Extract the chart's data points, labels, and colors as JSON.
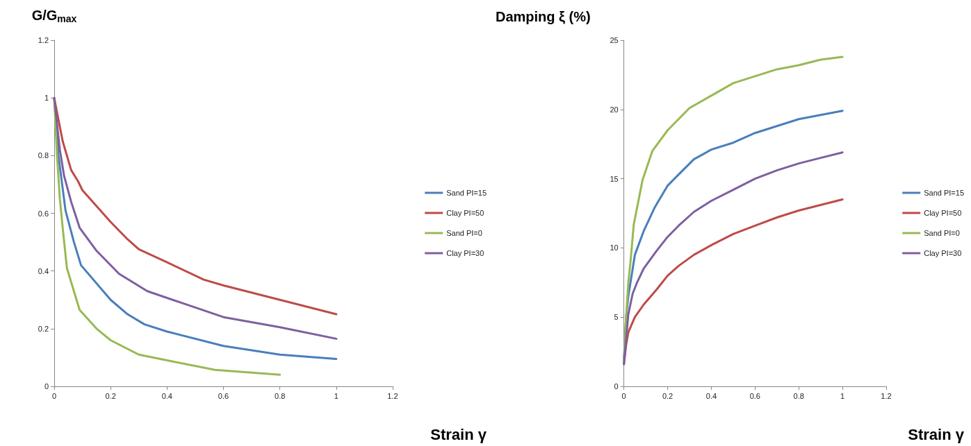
{
  "chart_data": [
    {
      "type": "line",
      "ylabel": "G/G$_{max}$",
      "xlabel": "Strain γ",
      "xlim": [
        0,
        1.2
      ],
      "xticks": [
        0,
        0.2,
        0.4,
        0.6,
        0.8,
        1,
        1.2
      ],
      "ylim": [
        0,
        1.2
      ],
      "yticks": [
        0,
        0.2,
        0.4,
        0.6,
        0.8,
        1,
        1.2
      ],
      "grid": false,
      "legend": "right",
      "marker": "none",
      "line_style": "solid",
      "series": [
        {
          "name": "Sand PI=15",
          "color": "#4a7ebb",
          "x": [
            0,
            0.015,
            0.04,
            0.07,
            0.095,
            0.2,
            0.26,
            0.32,
            0.4,
            0.6,
            0.8,
            1
          ],
          "values": [
            1,
            0.8,
            0.61,
            0.5,
            0.42,
            0.3,
            0.25,
            0.215,
            0.19,
            0.14,
            0.11,
            0.095
          ]
        },
        {
          "name": "Clay PI=50",
          "color": "#be4b48",
          "x": [
            0,
            0.03,
            0.06,
            0.085,
            0.1,
            0.2,
            0.26,
            0.3,
            0.4,
            0.53,
            0.6,
            0.8,
            1
          ],
          "values": [
            1,
            0.85,
            0.75,
            0.71,
            0.68,
            0.57,
            0.51,
            0.475,
            0.43,
            0.37,
            0.35,
            0.3,
            0.25
          ]
        },
        {
          "name": "Sand PI=0",
          "color": "#98b954",
          "x": [
            0,
            0.01,
            0.02,
            0.03,
            0.045,
            0.09,
            0.15,
            0.2,
            0.3,
            0.4,
            0.57,
            0.8
          ],
          "values": [
            1,
            0.8,
            0.65,
            0.55,
            0.41,
            0.265,
            0.2,
            0.16,
            0.11,
            0.09,
            0.057,
            0.04
          ]
        },
        {
          "name": "Clay PI=30",
          "color": "#7d5fa0",
          "x": [
            0,
            0.02,
            0.035,
            0.06,
            0.09,
            0.15,
            0.23,
            0.33,
            0.45,
            0.6,
            0.8,
            1
          ],
          "values": [
            1,
            0.82,
            0.73,
            0.64,
            0.55,
            0.47,
            0.39,
            0.33,
            0.29,
            0.24,
            0.205,
            0.165
          ]
        }
      ]
    },
    {
      "type": "line",
      "ylabel": "Damping ξ (%)",
      "xlabel": "Strain γ",
      "xlim": [
        0,
        1.2
      ],
      "xticks": [
        0,
        0.2,
        0.4,
        0.6,
        0.8,
        1,
        1.2
      ],
      "ylim": [
        0,
        25
      ],
      "yticks": [
        0,
        5,
        10,
        15,
        20,
        25
      ],
      "grid": false,
      "legend": "right",
      "marker": "none",
      "line_style": "solid",
      "series": [
        {
          "name": "Sand PI=15",
          "color": "#4a7ebb",
          "x": [
            0,
            0.01,
            0.02,
            0.05,
            0.09,
            0.14,
            0.2,
            0.25,
            0.32,
            0.4,
            0.5,
            0.6,
            0.7,
            0.8,
            0.9,
            1
          ],
          "values": [
            2,
            5,
            6.5,
            9.5,
            11.2,
            12.9,
            14.5,
            15.3,
            16.4,
            17.1,
            17.6,
            18.3,
            18.8,
            19.3,
            19.6,
            19.9
          ]
        },
        {
          "name": "Clay PI=50",
          "color": "#be4b48",
          "x": [
            0,
            0.01,
            0.02,
            0.05,
            0.09,
            0.15,
            0.2,
            0.25,
            0.32,
            0.4,
            0.5,
            0.6,
            0.7,
            0.8,
            0.9,
            1
          ],
          "values": [
            1.6,
            3,
            3.9,
            5,
            5.9,
            7,
            8,
            8.7,
            9.5,
            10.2,
            11,
            11.6,
            12.2,
            12.7,
            13.1,
            13.5
          ]
        },
        {
          "name": "Sand PI=0",
          "color": "#98b954",
          "x": [
            0,
            0.01,
            0.02,
            0.03,
            0.045,
            0.085,
            0.13,
            0.2,
            0.3,
            0.4,
            0.5,
            0.6,
            0.7,
            0.8,
            0.9,
            1
          ],
          "values": [
            1.7,
            5,
            7.5,
            9,
            11.7,
            14.9,
            17,
            18.5,
            20.1,
            21,
            21.9,
            22.4,
            22.9,
            23.2,
            23.6,
            23.8
          ]
        },
        {
          "name": "Clay PI=30",
          "color": "#7d5fa0",
          "x": [
            0,
            0.02,
            0.04,
            0.06,
            0.09,
            0.15,
            0.2,
            0.25,
            0.32,
            0.4,
            0.5,
            0.6,
            0.7,
            0.8,
            0.9,
            1
          ],
          "values": [
            1.6,
            5.2,
            6.7,
            7.5,
            8.5,
            9.8,
            10.8,
            11.6,
            12.6,
            13.4,
            14.2,
            15,
            15.6,
            16.1,
            16.5,
            16.9
          ]
        }
      ]
    }
  ]
}
